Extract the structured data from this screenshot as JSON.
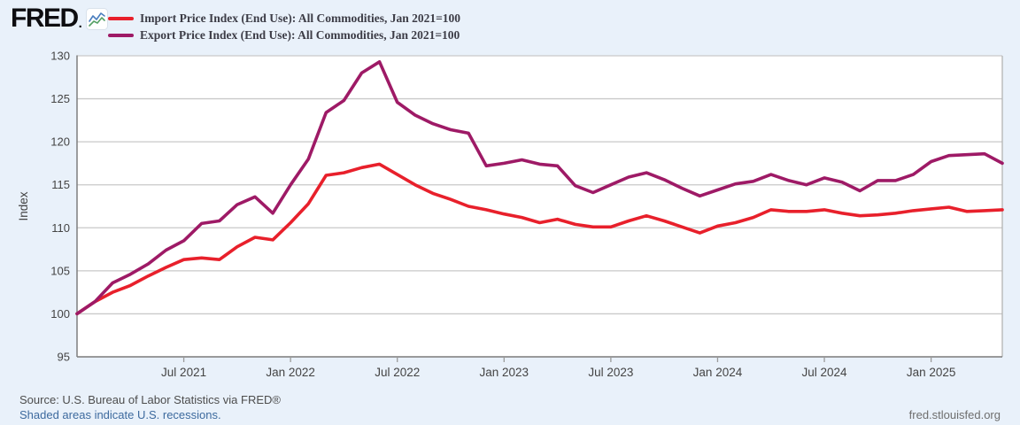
{
  "header": {
    "logo_text": "FRED",
    "logo_period": ".",
    "logo_icon": "line-chart-icon"
  },
  "footer": {
    "source": "Source: U.S. Bureau of Labor Statistics via FRED®",
    "recession_note": "Shaded areas indicate U.S. recessions.",
    "site_link": "fred.stlouisfed.org"
  },
  "chart_data": {
    "type": "line",
    "title": "",
    "ylabel": "Index",
    "ylim": [
      95,
      130
    ],
    "ytick_step": 5,
    "grid": true,
    "legend_position": "top-left",
    "x_unit": "month",
    "x_start_label": "Jan 2021",
    "x_end_label": "May 2025",
    "x_ticks": [
      {
        "month_index": 6,
        "label": "Jul 2021"
      },
      {
        "month_index": 12,
        "label": "Jan 2022"
      },
      {
        "month_index": 18,
        "label": "Jul 2022"
      },
      {
        "month_index": 24,
        "label": "Jan 2023"
      },
      {
        "month_index": 30,
        "label": "Jul 2023"
      },
      {
        "month_index": 36,
        "label": "Jan 2024"
      },
      {
        "month_index": 42,
        "label": "Jul 2024"
      },
      {
        "month_index": 48,
        "label": "Jan 2025"
      }
    ],
    "series": [
      {
        "id": "import",
        "name": "Import Price Index (End Use): All Commodities, Jan 2021=100",
        "color": "#e8202b",
        "values": [
          100.0,
          101.4,
          102.5,
          103.3,
          104.4,
          105.4,
          106.3,
          106.5,
          106.3,
          107.8,
          108.9,
          108.6,
          110.6,
          112.8,
          116.1,
          116.4,
          117.0,
          117.4,
          116.2,
          115.0,
          114.0,
          113.3,
          112.5,
          112.1,
          111.6,
          111.2,
          110.6,
          111.0,
          110.4,
          110.1,
          110.1,
          110.8,
          111.4,
          110.8,
          110.1,
          109.4,
          110.2,
          110.6,
          111.2,
          112.1,
          111.9,
          111.9,
          112.1,
          111.7,
          111.4,
          111.5,
          111.7,
          112.0,
          112.2,
          112.4,
          111.9,
          112.0,
          112.1
        ]
      },
      {
        "id": "export",
        "name": "Export Price Index (End Use): All Commodities, Jan 2021=100",
        "color": "#9e1a66",
        "values": [
          100.0,
          101.4,
          103.6,
          104.6,
          105.8,
          107.4,
          108.5,
          110.5,
          110.8,
          112.7,
          113.6,
          111.7,
          115.0,
          118.0,
          123.4,
          124.8,
          128.0,
          129.3,
          124.6,
          123.1,
          122.1,
          121.4,
          121.0,
          117.2,
          117.5,
          117.9,
          117.4,
          117.2,
          114.9,
          114.1,
          115.0,
          115.9,
          116.4,
          115.6,
          114.6,
          113.7,
          114.4,
          115.1,
          115.4,
          116.2,
          115.5,
          115.0,
          115.8,
          115.3,
          114.3,
          115.5,
          115.5,
          116.2,
          117.7,
          118.4,
          118.5,
          118.6,
          117.5
        ]
      }
    ]
  }
}
